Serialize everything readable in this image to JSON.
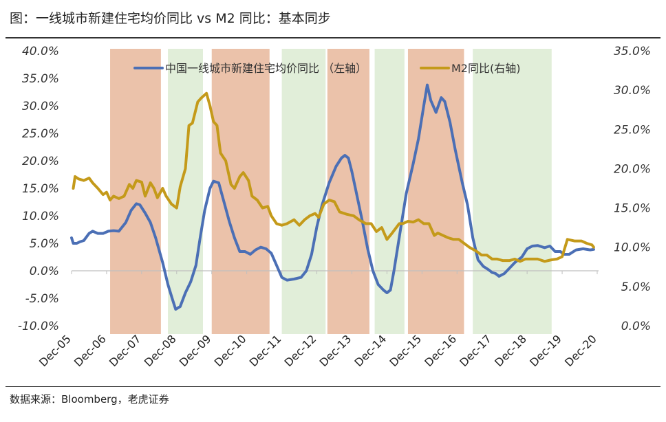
{
  "title": "图：一线城市新建住宅均价同比 vs M2 同比：基本同步",
  "source": "数据来源：Bloomberg，老虎证券",
  "chart_data": {
    "type": "line",
    "x_ticks": [
      "Dec-05",
      "Dec-06",
      "Dec-07",
      "Dec-08",
      "Dec-09",
      "Dec-10",
      "Dec-11",
      "Dec-12",
      "Dec-13",
      "Dec-14",
      "Dec-15",
      "Dec-16",
      "Dec-17",
      "Dec-18",
      "Dec-19",
      "Dec-20"
    ],
    "y_left": {
      "lim": [
        -10,
        40
      ],
      "ticks": [
        "-10.0%",
        "-5.0%",
        "0.0%",
        "5.0%",
        "10.0%",
        "15.0%",
        "20.0%",
        "25.0%",
        "30.0%",
        "35.0%",
        "40.0%"
      ]
    },
    "y_right": {
      "lim": [
        0,
        35
      ],
      "ticks": [
        "0.0%",
        "5.0%",
        "10.0%",
        "15.0%",
        "20.0%",
        "25.0%",
        "30.0%",
        "35.0%"
      ]
    },
    "legend_position": "top-center",
    "shaded_periods": [
      {
        "start": 2007.05,
        "end": 2008.5,
        "color": "#e8b79b"
      },
      {
        "start": 2008.7,
        "end": 2009.7,
        "color": "#dcebd2"
      },
      {
        "start": 2009.95,
        "end": 2011.6,
        "color": "#e8b79b"
      },
      {
        "start": 2011.95,
        "end": 2013.2,
        "color": "#dcebd2"
      },
      {
        "start": 2013.25,
        "end": 2014.45,
        "color": "#e8b79b"
      },
      {
        "start": 2014.6,
        "end": 2015.45,
        "color": "#dcebd2"
      },
      {
        "start": 2015.55,
        "end": 2017.15,
        "color": "#e8b79b"
      },
      {
        "start": 2017.4,
        "end": 2019.65,
        "color": "#dcebd2"
      }
    ],
    "series": [
      {
        "name": "中国一线城市新建住宅均价同比 （左轴）",
        "axis": "left",
        "color": "#4b6fb5",
        "points": [
          [
            2005.95,
            6.0
          ],
          [
            2006.0,
            5.0
          ],
          [
            2006.1,
            5.0
          ],
          [
            2006.2,
            5.3
          ],
          [
            2006.3,
            5.5
          ],
          [
            2006.45,
            6.8
          ],
          [
            2006.55,
            7.2
          ],
          [
            2006.7,
            6.8
          ],
          [
            2006.85,
            6.8
          ],
          [
            2007.0,
            7.2
          ],
          [
            2007.15,
            7.3
          ],
          [
            2007.3,
            7.2
          ],
          [
            2007.5,
            8.8
          ],
          [
            2007.65,
            11.0
          ],
          [
            2007.8,
            12.2
          ],
          [
            2007.9,
            12.0
          ],
          [
            2008.05,
            10.5
          ],
          [
            2008.2,
            8.8
          ],
          [
            2008.35,
            6.0
          ],
          [
            2008.55,
            1.5
          ],
          [
            2008.7,
            -2.5
          ],
          [
            2008.82,
            -5.0
          ],
          [
            2008.92,
            -7.0
          ],
          [
            2009.05,
            -6.5
          ],
          [
            2009.2,
            -4.0
          ],
          [
            2009.35,
            -2.0
          ],
          [
            2009.5,
            1.0
          ],
          [
            2009.62,
            6.0
          ],
          [
            2009.75,
            11.0
          ],
          [
            2009.9,
            15.0
          ],
          [
            2010.0,
            16.3
          ],
          [
            2010.15,
            16.0
          ],
          [
            2010.3,
            12.5
          ],
          [
            2010.45,
            9.0
          ],
          [
            2010.6,
            6.0
          ],
          [
            2010.75,
            3.5
          ],
          [
            2010.9,
            3.5
          ],
          [
            2011.05,
            3.0
          ],
          [
            2011.2,
            3.8
          ],
          [
            2011.35,
            4.3
          ],
          [
            2011.5,
            4.0
          ],
          [
            2011.65,
            3.2
          ],
          [
            2011.8,
            1.0
          ],
          [
            2011.95,
            -1.2
          ],
          [
            2012.1,
            -1.7
          ],
          [
            2012.3,
            -1.5
          ],
          [
            2012.5,
            -1.2
          ],
          [
            2012.65,
            0.0
          ],
          [
            2012.8,
            3.0
          ],
          [
            2012.95,
            8.0
          ],
          [
            2013.1,
            12.0
          ],
          [
            2013.3,
            16.0
          ],
          [
            2013.5,
            19.0
          ],
          [
            2013.65,
            20.5
          ],
          [
            2013.75,
            21.0
          ],
          [
            2013.85,
            20.5
          ],
          [
            2013.95,
            18.0
          ],
          [
            2014.1,
            13.5
          ],
          [
            2014.25,
            9.0
          ],
          [
            2014.4,
            4.0
          ],
          [
            2014.55,
            0.0
          ],
          [
            2014.7,
            -2.5
          ],
          [
            2014.85,
            -3.5
          ],
          [
            2014.95,
            -4.0
          ],
          [
            2015.05,
            -3.5
          ],
          [
            2015.15,
            0.0
          ],
          [
            2015.3,
            6.0
          ],
          [
            2015.5,
            14.0
          ],
          [
            2015.7,
            19.5
          ],
          [
            2015.85,
            24.0
          ],
          [
            2016.0,
            30.0
          ],
          [
            2016.1,
            33.8
          ],
          [
            2016.2,
            31.0
          ],
          [
            2016.35,
            28.8
          ],
          [
            2016.5,
            31.5
          ],
          [
            2016.6,
            30.8
          ],
          [
            2016.75,
            27.0
          ],
          [
            2016.9,
            22.0
          ],
          [
            2017.1,
            16.0
          ],
          [
            2017.25,
            12.0
          ],
          [
            2017.4,
            6.0
          ],
          [
            2017.55,
            2.0
          ],
          [
            2017.7,
            0.8
          ],
          [
            2017.85,
            0.2
          ],
          [
            2017.95,
            -0.3
          ],
          [
            2018.05,
            -0.5
          ],
          [
            2018.15,
            -1.0
          ],
          [
            2018.3,
            -0.5
          ],
          [
            2018.45,
            0.5
          ],
          [
            2018.6,
            1.5
          ],
          [
            2018.8,
            2.5
          ],
          [
            2018.95,
            4.0
          ],
          [
            2019.1,
            4.5
          ],
          [
            2019.25,
            4.6
          ],
          [
            2019.45,
            4.2
          ],
          [
            2019.6,
            4.5
          ],
          [
            2019.75,
            3.5
          ],
          [
            2019.9,
            3.5
          ],
          [
            2020.0,
            3.0
          ],
          [
            2020.15,
            3.0
          ],
          [
            2020.35,
            3.8
          ],
          [
            2020.55,
            4.0
          ],
          [
            2020.75,
            3.8
          ],
          [
            2020.85,
            3.9
          ]
        ]
      },
      {
        "name": "M2同比(右轴)",
        "axis": "right",
        "color": "#c49a1a",
        "points": [
          [
            2006.0,
            17.5
          ],
          [
            2006.05,
            19.0
          ],
          [
            2006.15,
            18.7
          ],
          [
            2006.3,
            18.5
          ],
          [
            2006.45,
            18.8
          ],
          [
            2006.55,
            18.2
          ],
          [
            2006.7,
            17.5
          ],
          [
            2006.85,
            16.7
          ],
          [
            2006.95,
            17.0
          ],
          [
            2007.05,
            16.0
          ],
          [
            2007.15,
            16.5
          ],
          [
            2007.3,
            16.2
          ],
          [
            2007.45,
            16.5
          ],
          [
            2007.6,
            18.0
          ],
          [
            2007.7,
            17.5
          ],
          [
            2007.8,
            18.5
          ],
          [
            2007.95,
            18.3
          ],
          [
            2008.05,
            16.5
          ],
          [
            2008.2,
            18.2
          ],
          [
            2008.3,
            17.5
          ],
          [
            2008.4,
            16.3
          ],
          [
            2008.55,
            17.5
          ],
          [
            2008.65,
            16.5
          ],
          [
            2008.8,
            15.5
          ],
          [
            2008.95,
            15.0
          ],
          [
            2009.05,
            17.7
          ],
          [
            2009.2,
            20.0
          ],
          [
            2009.3,
            25.5
          ],
          [
            2009.4,
            25.8
          ],
          [
            2009.55,
            28.5
          ],
          [
            2009.65,
            29.0
          ],
          [
            2009.8,
            29.6
          ],
          [
            2009.9,
            28.0
          ],
          [
            2010.0,
            26.0
          ],
          [
            2010.1,
            25.5
          ],
          [
            2010.2,
            22.0
          ],
          [
            2010.35,
            21.0
          ],
          [
            2010.5,
            18.0
          ],
          [
            2010.6,
            17.5
          ],
          [
            2010.75,
            19.0
          ],
          [
            2010.85,
            19.5
          ],
          [
            2011.0,
            18.5
          ],
          [
            2011.1,
            16.5
          ],
          [
            2011.25,
            16.0
          ],
          [
            2011.4,
            15.0
          ],
          [
            2011.55,
            15.2
          ],
          [
            2011.65,
            14.0
          ],
          [
            2011.8,
            13.0
          ],
          [
            2011.95,
            12.8
          ],
          [
            2012.1,
            13.0
          ],
          [
            2012.3,
            13.5
          ],
          [
            2012.45,
            12.8
          ],
          [
            2012.6,
            13.5
          ],
          [
            2012.75,
            14.0
          ],
          [
            2012.9,
            14.3
          ],
          [
            2013.0,
            13.8
          ],
          [
            2013.15,
            15.5
          ],
          [
            2013.3,
            16.0
          ],
          [
            2013.45,
            15.8
          ],
          [
            2013.6,
            14.5
          ],
          [
            2013.8,
            14.2
          ],
          [
            2014.0,
            14.0
          ],
          [
            2014.15,
            13.5
          ],
          [
            2014.35,
            13.0
          ],
          [
            2014.5,
            13.0
          ],
          [
            2014.65,
            12.0
          ],
          [
            2014.8,
            12.5
          ],
          [
            2014.95,
            11.0
          ],
          [
            2015.1,
            11.8
          ],
          [
            2015.3,
            13.0
          ],
          [
            2015.4,
            13.0
          ],
          [
            2015.55,
            13.3
          ],
          [
            2015.7,
            13.2
          ],
          [
            2015.85,
            13.5
          ],
          [
            2016.0,
            13.0
          ],
          [
            2016.15,
            13.0
          ],
          [
            2016.3,
            11.5
          ],
          [
            2016.4,
            11.8
          ],
          [
            2016.55,
            11.5
          ],
          [
            2016.7,
            11.2
          ],
          [
            2016.85,
            11.0
          ],
          [
            2017.0,
            11.0
          ],
          [
            2017.15,
            10.5
          ],
          [
            2017.3,
            10.0
          ],
          [
            2017.5,
            9.5
          ],
          [
            2017.65,
            9.0
          ],
          [
            2017.8,
            9.0
          ],
          [
            2017.95,
            8.5
          ],
          [
            2018.1,
            8.5
          ],
          [
            2018.25,
            8.3
          ],
          [
            2018.45,
            8.3
          ],
          [
            2018.6,
            8.5
          ],
          [
            2018.75,
            8.2
          ],
          [
            2018.9,
            8.5
          ],
          [
            2019.05,
            8.5
          ],
          [
            2019.25,
            8.5
          ],
          [
            2019.45,
            8.2
          ],
          [
            2019.65,
            8.4
          ],
          [
            2019.8,
            8.5
          ],
          [
            2019.95,
            8.8
          ],
          [
            2020.1,
            11.0
          ],
          [
            2020.3,
            10.8
          ],
          [
            2020.5,
            10.8
          ],
          [
            2020.65,
            10.5
          ],
          [
            2020.8,
            10.3
          ],
          [
            2020.85,
            10.0
          ]
        ]
      }
    ]
  }
}
